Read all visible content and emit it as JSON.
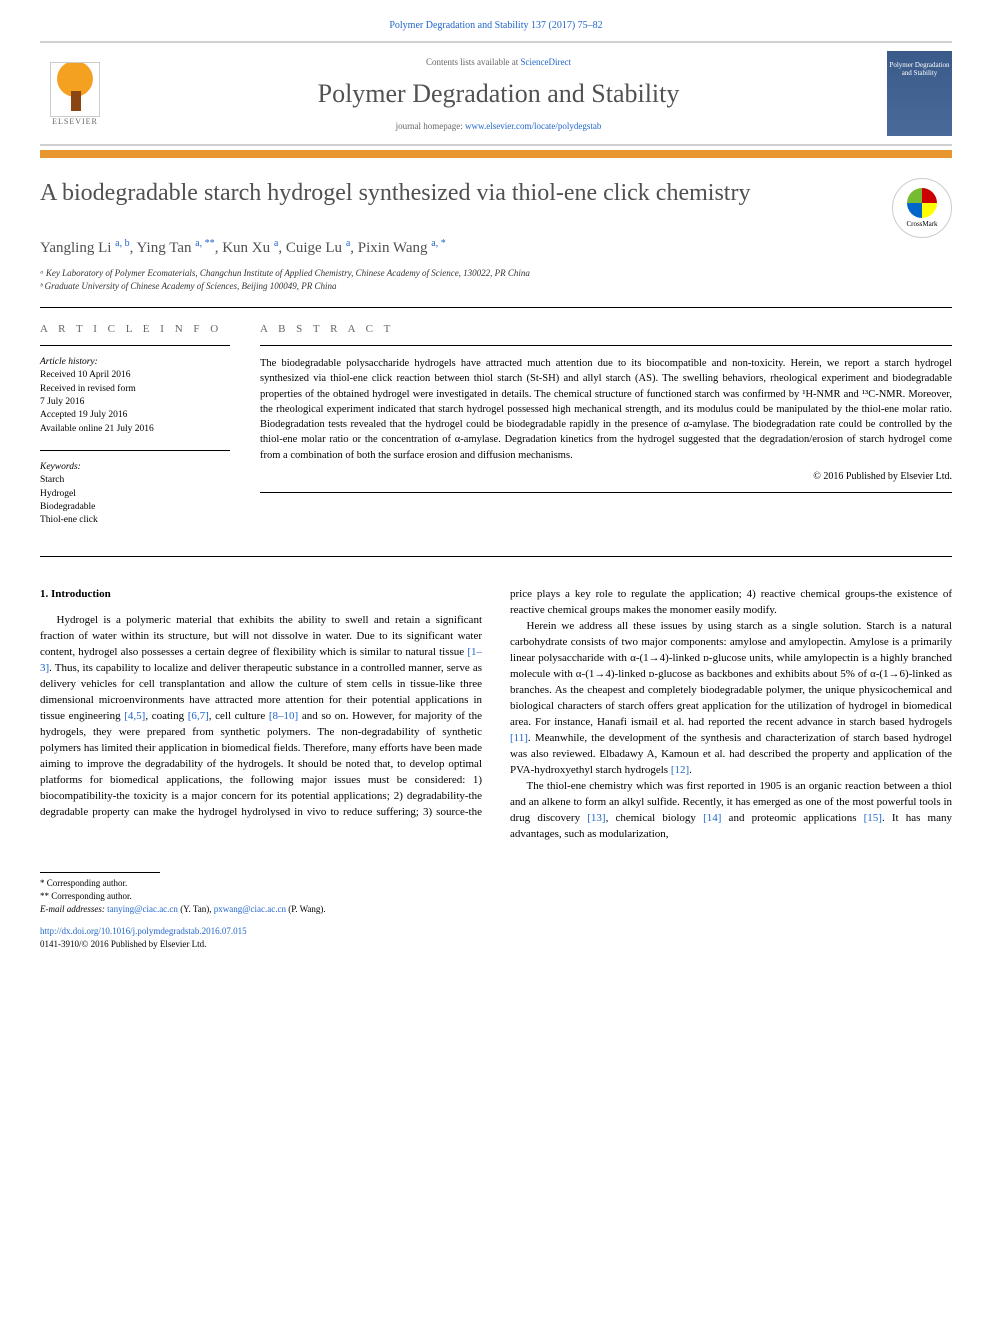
{
  "citation": "Polymer Degradation and Stability 137 (2017) 75–82",
  "header": {
    "contents_prefix": "Contents lists available at ",
    "contents_link": "ScienceDirect",
    "journal_name": "Polymer Degradation and Stability",
    "homepage_prefix": "journal homepage: ",
    "homepage_url": "www.elsevier.com/locate/polydegstab",
    "publisher": "ELSEVIER",
    "cover_text": "Polymer Degradation and Stability"
  },
  "crossmark": "CrossMark",
  "article": {
    "title": "A biodegradable starch hydrogel synthesized via thiol-ene click chemistry",
    "authors_html": "Yangling Li <sup>a, b</sup>, Ying Tan <sup>a, **</sup>, Kun Xu <sup>a</sup>, Cuige Lu <sup>a</sup>, Pixin Wang <sup>a, *</sup>",
    "affiliations": [
      "ᵃ Key Laboratory of Polymer Ecomaterials, Changchun Institute of Applied Chemistry, Chinese Academy of Science, 130022, PR China",
      "ᵇ Graduate University of Chinese Academy of Sciences, Beijing 100049, PR China"
    ]
  },
  "info": {
    "heading": "A R T I C L E   I N F O",
    "history_label": "Article history:",
    "history": [
      "Received 10 April 2016",
      "Received in revised form",
      "7 July 2016",
      "Accepted 19 July 2016",
      "Available online 21 July 2016"
    ],
    "keywords_label": "Keywords:",
    "keywords": [
      "Starch",
      "Hydrogel",
      "Biodegradable",
      "Thiol-ene click"
    ]
  },
  "abstract": {
    "heading": "A B S T R A C T",
    "text": "The biodegradable polysaccharide hydrogels have attracted much attention due to its biocompatible and non-toxicity. Herein, we report a starch hydrogel synthesized via thiol-ene click reaction between thiol starch (St-SH) and allyl starch (AS). The swelling behaviors, rheological experiment and biodegradable properties of the obtained hydrogel were investigated in details. The chemical structure of functioned starch was confirmed by ¹H-NMR and ¹³C-NMR. Moreover, the rheological experiment indicated that starch hydrogel possessed high mechanical strength, and its modulus could be manipulated by the thiol-ene molar ratio. Biodegradation tests revealed that the hydrogel could be biodegradable rapidly in the presence of α-amylase. The biodegradation rate could be controlled by the thiol-ene molar ratio or the concentration of α-amylase. Degradation kinetics from the hydrogel suggested that the degradation/erosion of starch hydrogel come from a combination of both the surface erosion and diffusion mechanisms.",
    "copyright": "© 2016 Published by Elsevier Ltd."
  },
  "body": {
    "section_number": "1.",
    "section_title": "Introduction",
    "p1_pre": "Hydrogel is a polymeric material that exhibits the ability to swell and retain a significant fraction of water within its structure, but will not dissolve in water. Due to its significant water content, hydrogel also possesses a certain degree of flexibility which is similar to natural tissue ",
    "ref1": "[1–3]",
    "p1_mid1": ". Thus, its capability to localize and deliver therapeutic substance in a controlled manner, serve as delivery vehicles for cell transplantation and allow the culture of stem cells in tissue-like three dimensional microenvironments have attracted more attention for their potential applications in tissue engineering ",
    "ref2": "[4,5]",
    "p1_mid2": ", coating ",
    "ref3": "[6,7]",
    "p1_mid3": ", cell culture ",
    "ref4": "[8–10]",
    "p1_post": " and so on. However, for majority of the hydrogels, they were prepared from synthetic polymers. The non-degradability of synthetic polymers has limited their application in biomedical fields. Therefore, many efforts have been made aiming to improve the degradability of the hydrogels. It should be noted that, to develop optimal platforms for biomedical applications, the following major issues must be considered: 1) biocompatibility-the toxicity is a major concern for its potential applications; 2) degradability-the degradable property can make the hydrogel hydrolysed in vivo to reduce suffering; 3) source-the price plays a key role to regulate the application; 4) reactive chemical groups-the existence of reactive chemical groups makes the monomer easily modify.",
    "p2_pre": "Herein we address all these issues by using starch as a single solution. Starch is a natural carbohydrate consists of two major components: amylose and amylopectin. Amylose is a primarily linear polysaccharide with α-(1→4)-linked ᴅ-glucose units, while amylopectin is a highly branched molecule with α-(1→4)-linked ᴅ-glucose as backbones and exhibits about 5% of α-(1→6)-linked as branches. As the cheapest and completely biodegradable polymer, the unique physicochemical and biological characters of starch offers great application for the utilization of hydrogel in biomedical area. For instance, Hanafi ismail et al. had reported the recent advance in starch based hydrogels ",
    "ref5": "[11]",
    "p2_mid": ". Meanwhile, the development of the synthesis and characterization of starch based hydrogel was also reviewed. Elbadawy A, Kamoun et al. had described the property and application of the PVA-hydroxyethyl starch hydrogels ",
    "ref6": "[12]",
    "p2_post": ".",
    "p3_pre": "The thiol-ene chemistry which was first reported in 1905 is an organic reaction between a thiol and an alkene to form an alkyl sulfide. Recently, it has emerged as one of the most powerful tools in drug discovery ",
    "ref7": "[13]",
    "p3_mid1": ", chemical biology ",
    "ref8": "[14]",
    "p3_mid2": " and proteomic applications ",
    "ref9": "[15]",
    "p3_post": ". It has many advantages, such as modularization,"
  },
  "footer": {
    "corr1": "* Corresponding author.",
    "corr2": "** Corresponding author.",
    "email_label": "E-mail addresses: ",
    "email1": "tanying@ciac.ac.cn",
    "email1_name": " (Y. Tan), ",
    "email2": "pxwang@ciac.ac.cn",
    "email2_name": " (P. Wang).",
    "doi": "http://dx.doi.org/10.1016/j.polymdegradstab.2016.07.015",
    "copyright": "0141-3910/© 2016 Published by Elsevier Ltd."
  },
  "colors": {
    "link": "#2266cc",
    "orange_bar": "#e8962f",
    "title_gray": "#505050"
  }
}
